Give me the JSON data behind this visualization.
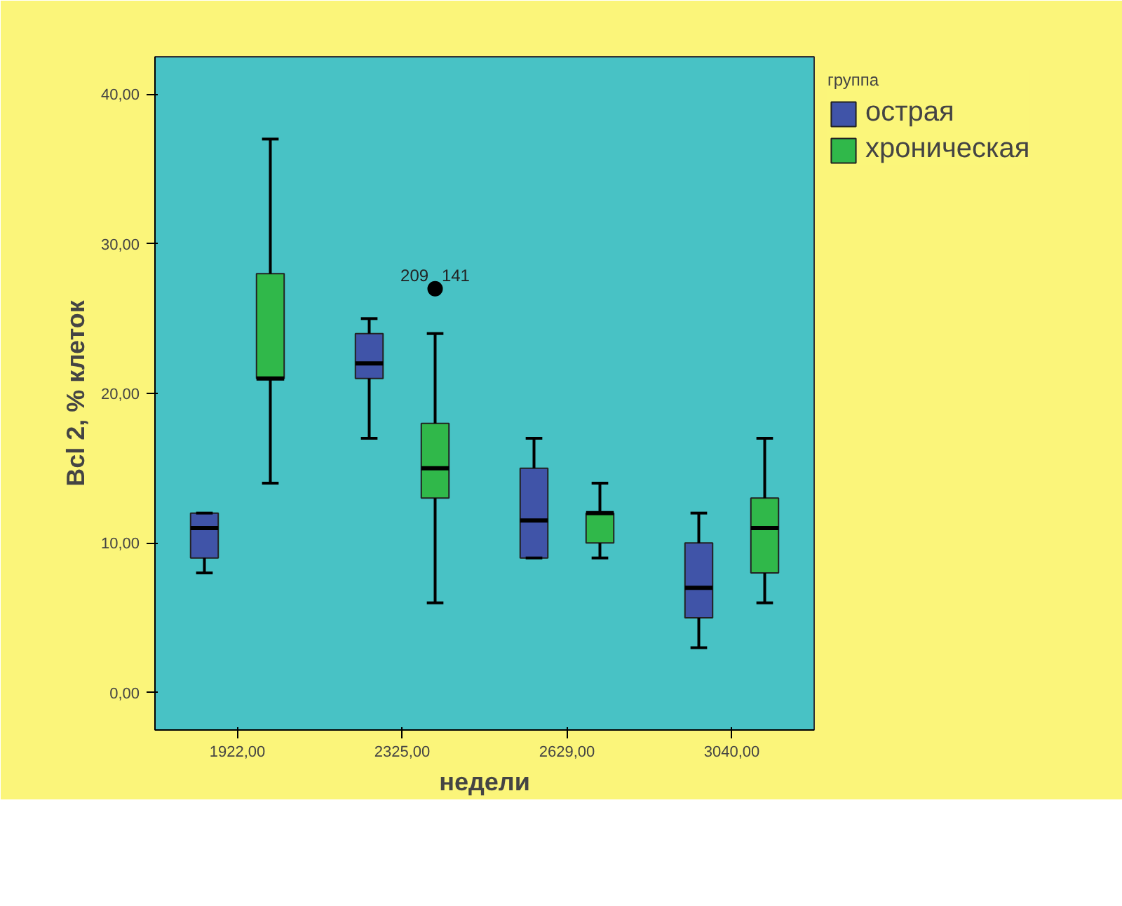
{
  "chart_data": {
    "type": "box",
    "xlabel": "недели",
    "ylabel": "Bcl 2, % клеток",
    "legend_title": "группа",
    "legend": "right",
    "grid": false,
    "categories": [
      "1922,00",
      "2325,00",
      "2629,00",
      "3040,00"
    ],
    "ylim": [
      -2.5,
      42.5
    ],
    "yticks": [
      {
        "value": 0,
        "label": "0,00"
      },
      {
        "value": 10,
        "label": "10,00"
      },
      {
        "value": 20,
        "label": "20,00"
      },
      {
        "value": 30,
        "label": "30,00"
      },
      {
        "value": 40,
        "label": "40,00"
      }
    ],
    "series": [
      {
        "name": "острая",
        "color": "#4054a8",
        "boxes": [
          {
            "low": 8,
            "q1": 9,
            "median": 11,
            "q3": 12,
            "high": 12
          },
          {
            "low": 17,
            "q1": 21,
            "median": 22,
            "q3": 24,
            "high": 25
          },
          {
            "low": 9,
            "q1": 9,
            "median": 11.5,
            "q3": 15,
            "high": 17
          },
          {
            "low": 3,
            "q1": 5,
            "median": 7,
            "q3": 10,
            "high": 12
          }
        ]
      },
      {
        "name": "хроническая",
        "color": "#30b84a",
        "boxes": [
          {
            "low": 14,
            "q1": 21,
            "median": 21,
            "q3": 28,
            "high": 37
          },
          {
            "low": 6,
            "q1": 13,
            "median": 15,
            "q3": 18,
            "high": 24,
            "outliers": [
              27
            ]
          },
          {
            "low": 9,
            "q1": 10,
            "median": 12,
            "q3": 12,
            "high": 14
          },
          {
            "low": 6,
            "q1": 8,
            "median": 11,
            "q3": 13,
            "high": 17
          }
        ]
      }
    ],
    "annotations": [
      "209",
      "141"
    ]
  }
}
